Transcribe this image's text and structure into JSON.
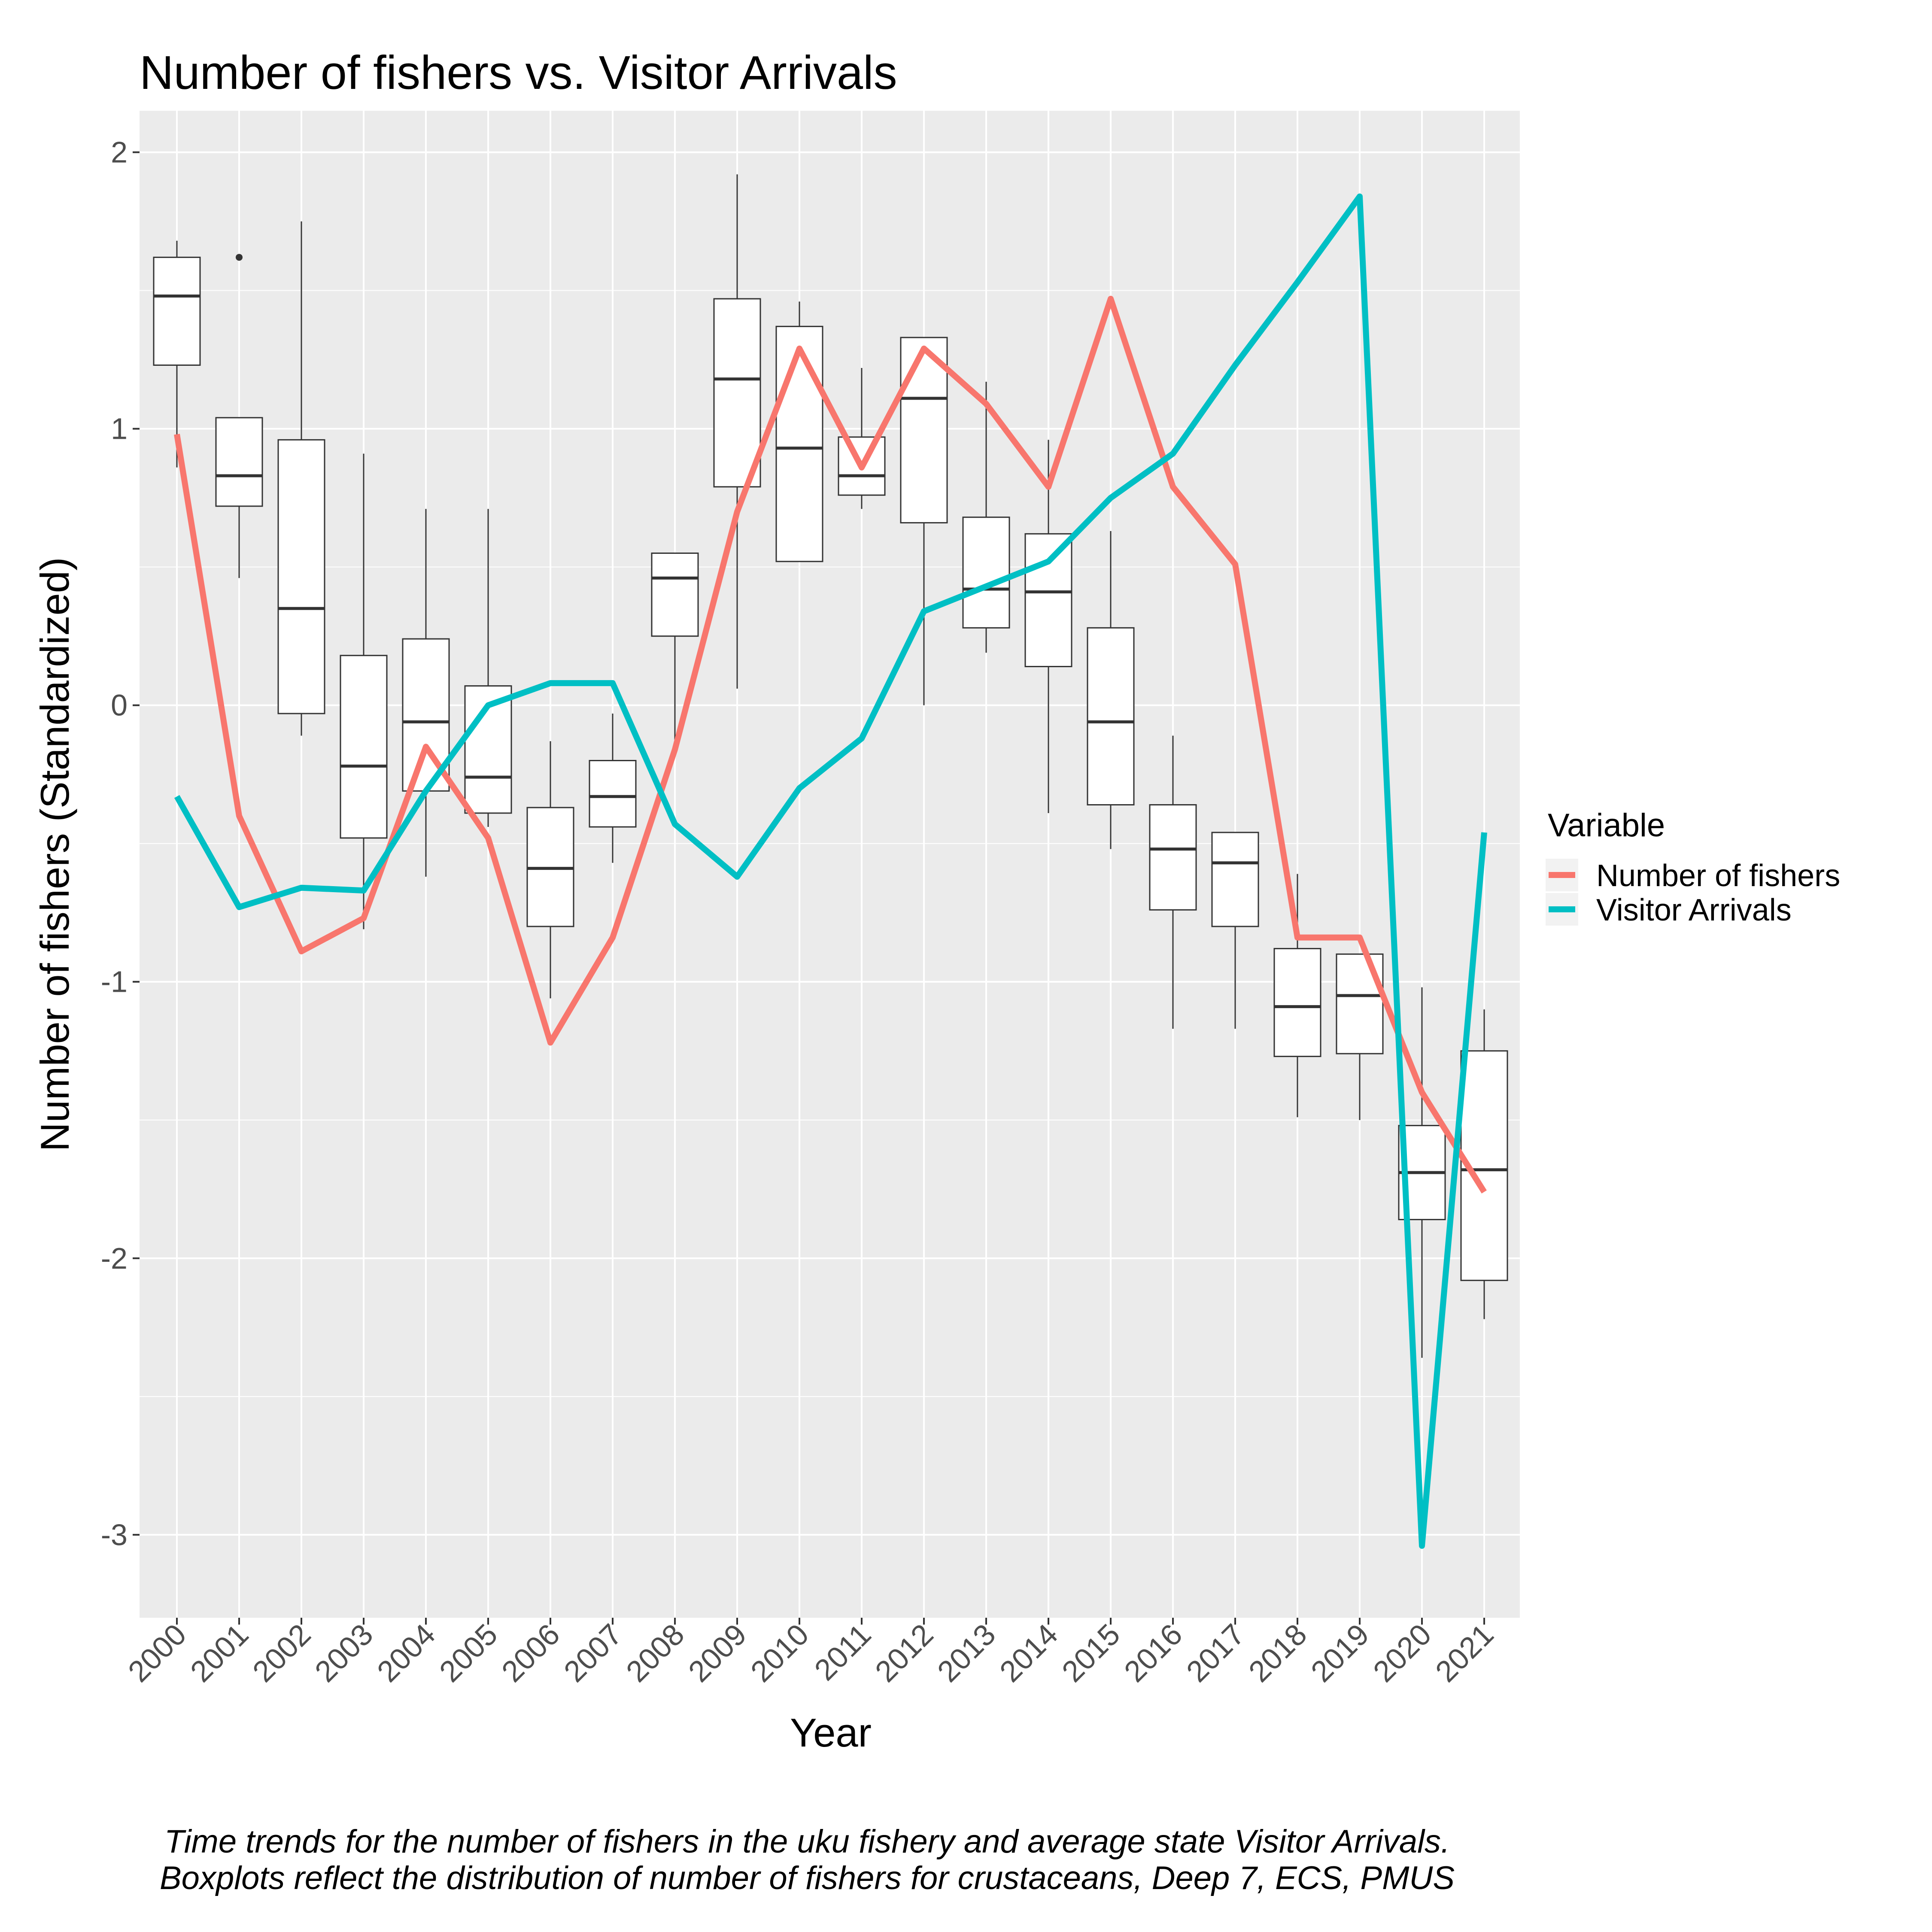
{
  "chart_data": {
    "type": "line",
    "title": "Number of fishers vs. Visitor Arrivals",
    "xlabel": "Year",
    "ylabel": "Number of fishers (Standardized)",
    "ylim": [
      -3.3,
      2.15
    ],
    "y_ticks": [
      -3,
      -2,
      -1,
      0,
      1,
      2
    ],
    "y_tick_labels": [
      "-3",
      "-2",
      "-1",
      "0",
      "1",
      "2"
    ],
    "grid": true,
    "legend_position": "right",
    "legend_title": "Variable",
    "categories": [
      "2000",
      "2001",
      "2002",
      "2003",
      "2004",
      "2005",
      "2006",
      "2007",
      "2008",
      "2009",
      "2010",
      "2011",
      "2012",
      "2013",
      "2014",
      "2015",
      "2016",
      "2017",
      "2018",
      "2019",
      "2020",
      "2021"
    ],
    "series": [
      {
        "name": "Number of fishers",
        "color": "#F8766D",
        "values": [
          0.98,
          -0.4,
          -0.89,
          -0.77,
          -0.15,
          -0.48,
          -1.22,
          -0.84,
          -0.16,
          0.7,
          1.29,
          0.86,
          1.29,
          1.09,
          0.79,
          1.47,
          0.79,
          0.51,
          -0.84,
          -0.84,
          -1.4,
          -1.76
        ]
      },
      {
        "name": "Visitor Arrivals",
        "color": "#00BFC4",
        "values": [
          -0.33,
          -0.73,
          -0.66,
          -0.67,
          -0.31,
          0.0,
          0.08,
          0.08,
          -0.43,
          -0.62,
          -0.3,
          -0.12,
          0.34,
          0.43,
          0.52,
          0.75,
          0.91,
          1.23,
          1.53,
          1.84,
          -3.04,
          -0.46
        ]
      }
    ],
    "boxplots": [
      {
        "x": "2000",
        "min": 0.86,
        "q1": 1.23,
        "median": 1.48,
        "q3": 1.62,
        "max": 1.68,
        "outliers": []
      },
      {
        "x": "2001",
        "min": 0.46,
        "q1": 0.72,
        "median": 0.83,
        "q3": 1.04,
        "max": 1.04,
        "outliers": [
          1.62
        ]
      },
      {
        "x": "2002",
        "min": -0.11,
        "q1": -0.03,
        "median": 0.35,
        "q3": 0.96,
        "max": 1.75,
        "outliers": []
      },
      {
        "x": "2003",
        "min": -0.81,
        "q1": -0.48,
        "median": -0.22,
        "q3": 0.18,
        "max": 0.91,
        "outliers": []
      },
      {
        "x": "2004",
        "min": -0.62,
        "q1": -0.31,
        "median": -0.06,
        "q3": 0.24,
        "max": 0.71,
        "outliers": []
      },
      {
        "x": "2005",
        "min": -0.44,
        "q1": -0.39,
        "median": -0.26,
        "q3": 0.07,
        "max": 0.71,
        "outliers": []
      },
      {
        "x": "2006",
        "min": -1.06,
        "q1": -0.8,
        "median": -0.59,
        "q3": -0.37,
        "max": -0.13,
        "outliers": []
      },
      {
        "x": "2007",
        "min": -0.57,
        "q1": -0.44,
        "median": -0.33,
        "q3": -0.2,
        "max": -0.03,
        "outliers": []
      },
      {
        "x": "2008",
        "min": -0.14,
        "q1": 0.25,
        "median": 0.46,
        "q3": 0.55,
        "max": 0.55,
        "outliers": []
      },
      {
        "x": "2009",
        "min": 0.06,
        "q1": 0.79,
        "median": 1.18,
        "q3": 1.47,
        "max": 1.92,
        "outliers": []
      },
      {
        "x": "2010",
        "min": 0.52,
        "q1": 0.52,
        "median": 0.93,
        "q3": 1.37,
        "max": 1.46,
        "outliers": []
      },
      {
        "x": "2011",
        "min": 0.71,
        "q1": 0.76,
        "median": 0.83,
        "q3": 0.97,
        "max": 1.22,
        "outliers": []
      },
      {
        "x": "2012",
        "min": 0.0,
        "q1": 0.66,
        "median": 1.11,
        "q3": 1.33,
        "max": 1.33,
        "outliers": []
      },
      {
        "x": "2013",
        "min": 0.19,
        "q1": 0.28,
        "median": 0.42,
        "q3": 0.68,
        "max": 1.17,
        "outliers": []
      },
      {
        "x": "2014",
        "min": -0.39,
        "q1": 0.14,
        "median": 0.41,
        "q3": 0.62,
        "max": 0.96,
        "outliers": []
      },
      {
        "x": "2015",
        "min": -0.52,
        "q1": -0.36,
        "median": -0.06,
        "q3": 0.28,
        "max": 0.63,
        "outliers": []
      },
      {
        "x": "2016",
        "min": -1.17,
        "q1": -0.74,
        "median": -0.52,
        "q3": -0.36,
        "max": -0.11,
        "outliers": []
      },
      {
        "x": "2017",
        "min": -1.17,
        "q1": -0.8,
        "median": -0.57,
        "q3": -0.46,
        "max": -0.46,
        "outliers": []
      },
      {
        "x": "2018",
        "min": -1.49,
        "q1": -1.27,
        "median": -1.09,
        "q3": -0.88,
        "max": -0.61,
        "outliers": []
      },
      {
        "x": "2019",
        "min": -1.5,
        "q1": -1.26,
        "median": -1.05,
        "q3": -0.9,
        "max": -0.9,
        "outliers": []
      },
      {
        "x": "2020",
        "min": -2.36,
        "q1": -1.86,
        "median": -1.69,
        "q3": -1.52,
        "max": -1.02,
        "outliers": []
      },
      {
        "x": "2021",
        "min": -2.22,
        "q1": -2.08,
        "median": -1.68,
        "q3": -1.25,
        "max": -1.1,
        "outliers": []
      }
    ]
  },
  "caption": {
    "line1": "Time trends for the number of fishers in the uku fishery and average state Visitor Arrivals.",
    "line2": "Boxplots reflect the distribution of number of fishers for crustaceans, Deep 7, ECS, PMUS"
  }
}
